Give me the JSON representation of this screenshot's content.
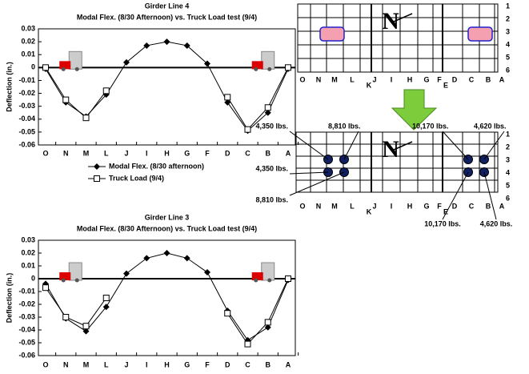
{
  "chart_data": [
    {
      "type": "line",
      "title": "Girder Line 4",
      "subtitle": "Modal Flex. (8/30 Afternoon) vs. Truck Load test (9/4)",
      "y_label": "Deflection (in.)",
      "categories": [
        "O",
        "N",
        "M",
        "L",
        "J",
        "I",
        "H",
        "G",
        "F",
        "D",
        "C",
        "B",
        "A"
      ],
      "series": [
        {
          "name": "Modal Flex. (8/30 afternoon)",
          "color": "#000000",
          "marker": "diamond",
          "values": [
            -0.001,
            -0.027,
            -0.038,
            -0.021,
            0.004,
            0.017,
            0.02,
            0.017,
            0.003,
            -0.027,
            -0.049,
            -0.035,
            -0.001
          ]
        },
        {
          "name": "Truck Load (9/4)",
          "color": "#000000",
          "marker": "square",
          "values": [
            0,
            -0.025,
            -0.039,
            -0.018,
            null,
            null,
            null,
            null,
            null,
            -0.023,
            -0.048,
            -0.031,
            0
          ]
        }
      ],
      "ylim": [
        -0.06,
        0.03
      ],
      "yticks": [
        0.03,
        0.02,
        0.01,
        0,
        -0.01,
        -0.02,
        -0.03,
        -0.04,
        -0.05,
        -0.06
      ],
      "legend": "bottom"
    },
    {
      "type": "line",
      "title": "Girder Line 3",
      "subtitle": "Modal Flex. (8/30 Afternoon) vs. Truck Load test (9/4)",
      "y_label": "Deflection (in.)",
      "categories": [
        "O",
        "N",
        "M",
        "L",
        "J",
        "I",
        "H",
        "G",
        "F",
        "D",
        "C",
        "B",
        "A"
      ],
      "series": [
        {
          "color": "#000000",
          "marker": "diamond",
          "values": [
            -0.004,
            -0.031,
            -0.041,
            -0.022,
            0.004,
            0.016,
            0.02,
            0.016,
            0.005,
            -0.025,
            -0.048,
            -0.038,
            -0.001
          ]
        },
        {
          "color": "#000000",
          "marker": "square",
          "values": [
            -0.007,
            -0.03,
            -0.037,
            -0.015,
            null,
            null,
            null,
            null,
            null,
            -0.027,
            -0.051,
            -0.034,
            0
          ]
        }
      ],
      "ylim": [
        -0.06,
        0.03
      ],
      "yticks": [
        0.03,
        0.02,
        0.01,
        0,
        -0.01,
        -0.02,
        -0.03,
        -0.04,
        -0.05,
        -0.06
      ]
    }
  ],
  "diagrams": [
    {
      "north": "N",
      "columns": [
        "O",
        "N",
        "M",
        "L",
        "K",
        "J",
        "I",
        "H",
        "G",
        "F",
        "E",
        "D",
        "C",
        "B",
        "A"
      ],
      "rows": [
        "1",
        "2",
        "3",
        "4",
        "5",
        "6"
      ]
    },
    {
      "north": "N",
      "columns": [
        "O",
        "N",
        "M",
        "L",
        "K",
        "J",
        "I",
        "H",
        "G",
        "F",
        "E",
        "D",
        "C",
        "B",
        "A"
      ],
      "rows": [
        "1",
        "2",
        "3",
        "4",
        "5",
        "6"
      ],
      "loads": [
        "4,350 lbs.",
        "8,810 lbs.",
        "10,170 lbs.",
        "4,620 lbs.",
        "4,350 lbs.",
        "8,810 lbs.",
        "10,170 lbs.",
        "4,620 lbs."
      ]
    }
  ]
}
